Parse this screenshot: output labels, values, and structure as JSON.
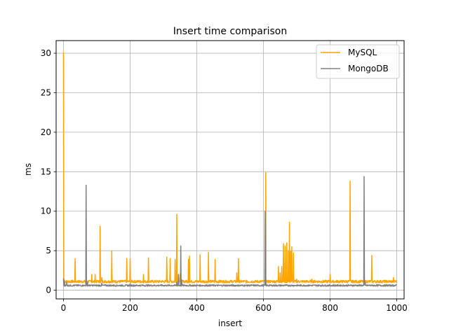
{
  "chart_data": {
    "type": "line",
    "title": "Insert time comparison",
    "xlabel": "insert",
    "ylabel": "ms",
    "xlim": [
      -22,
      1022
    ],
    "ylim": [
      -1.1,
      31.6
    ],
    "xticks": [
      0,
      200,
      400,
      600,
      800,
      1000
    ],
    "yticks": [
      0,
      5,
      10,
      15,
      20,
      25,
      30
    ],
    "xtick_labels": [
      "0",
      "200",
      "400",
      "600",
      "800",
      "1000"
    ],
    "ytick_labels": [
      "0",
      "5",
      "10",
      "15",
      "20",
      "25",
      "30"
    ],
    "grid": true,
    "legend_position": "top-right",
    "series": [
      {
        "name": "MySQL",
        "color": "#ffa500",
        "baseline": 1.1,
        "spikes": [
          [
            0,
            30.1
          ],
          [
            2,
            1.4
          ],
          [
            35,
            4.0
          ],
          [
            85,
            2.0
          ],
          [
            95,
            2.0
          ],
          [
            110,
            8.1
          ],
          [
            115,
            1.6
          ],
          [
            145,
            5.0
          ],
          [
            190,
            4.0
          ],
          [
            200,
            4.0
          ],
          [
            240,
            2.0
          ],
          [
            255,
            4.1
          ],
          [
            310,
            4.2
          ],
          [
            320,
            4.0
          ],
          [
            335,
            3.9
          ],
          [
            340,
            9.6
          ],
          [
            350,
            2.0
          ],
          [
            375,
            3.9
          ],
          [
            378,
            4.3
          ],
          [
            410,
            4.5
          ],
          [
            435,
            4.8
          ],
          [
            455,
            3.9
          ],
          [
            520,
            2.2
          ],
          [
            525,
            4.0
          ],
          [
            607,
            14.9
          ],
          [
            645,
            3.0
          ],
          [
            650,
            2.2
          ],
          [
            655,
            3.0
          ],
          [
            660,
            5.9
          ],
          [
            665,
            5.6
          ],
          [
            670,
            6.0
          ],
          [
            675,
            5.0
          ],
          [
            678,
            8.6
          ],
          [
            682,
            4.9
          ],
          [
            685,
            5.5
          ],
          [
            690,
            4.7
          ],
          [
            700,
            1.4
          ],
          [
            745,
            1.4
          ],
          [
            800,
            2.0
          ],
          [
            860,
            13.8
          ],
          [
            900,
            1.2
          ],
          [
            925,
            4.4
          ],
          [
            990,
            1.6
          ]
        ]
      },
      {
        "name": "MongoDB",
        "color": "#808080",
        "baseline": 0.6,
        "spikes": [
          [
            0,
            1.5
          ],
          [
            3,
            1.2
          ],
          [
            10,
            1.0
          ],
          [
            68,
            13.3
          ],
          [
            72,
            1.0
          ],
          [
            115,
            0.9
          ],
          [
            200,
            0.8
          ],
          [
            340,
            1.0
          ],
          [
            345,
            2.0
          ],
          [
            352,
            5.6
          ],
          [
            355,
            1.3
          ],
          [
            605,
            10.0
          ],
          [
            607,
            1.2
          ],
          [
            902,
            14.4
          ],
          [
            905,
            1.0
          ],
          [
            998,
            0.7
          ]
        ]
      }
    ]
  }
}
